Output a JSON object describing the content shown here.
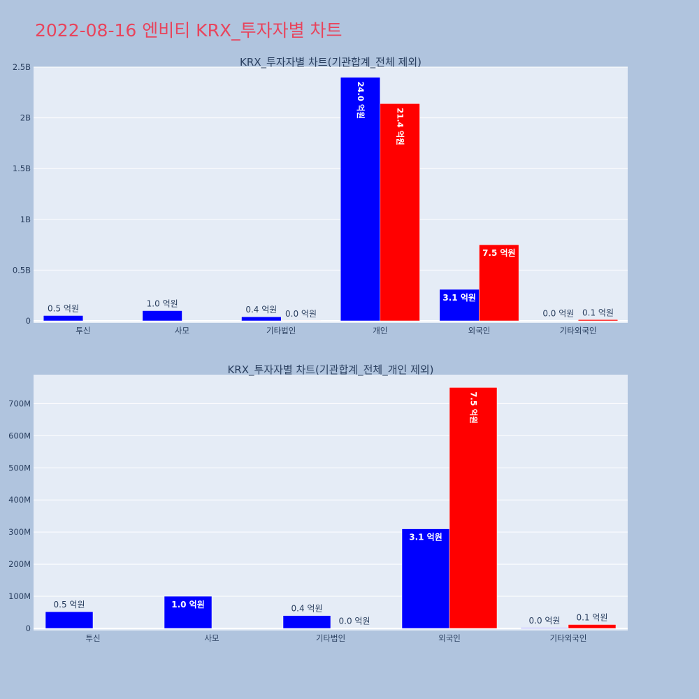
{
  "title": "2022-08-16 엔비티 KRX_투자자별 차트",
  "colors": {
    "series1": "#0000ff",
    "series2": "#ff0000",
    "plot_bg": "#e5ecf6",
    "page_bg": "#b0c4de",
    "title": "#e8445c"
  },
  "chart_data": [
    {
      "type": "bar",
      "title": "KRX_투자자별 차트(기관합계_전체 제외)",
      "categories": [
        "투신",
        "사모",
        "기타법인",
        "개인",
        "외국인",
        "기타외국인"
      ],
      "ylim": [
        0,
        2500000000
      ],
      "yticks": [
        0,
        500000000,
        1000000000,
        1500000000,
        2000000000,
        2500000000
      ],
      "ytick_labels": [
        "0",
        "0.5B",
        "1B",
        "1.5B",
        "2B",
        "2.5B"
      ],
      "grid": true,
      "series": [
        {
          "values": [
            52000000,
            100000000,
            40000000,
            2400000000,
            310000000,
            2000000
          ],
          "labels": [
            "0.5 억원",
            "1.0 억원",
            "0.4 억원",
            "24.0 억원",
            "3.1 억원",
            "0.0 억원"
          ]
        },
        {
          "values": [
            0,
            0,
            1000000,
            2140000000,
            750000000,
            12000000
          ],
          "labels": [
            "",
            "",
            "0.0 억원",
            "21.4 억원",
            "7.5 억원",
            "0.1 억원"
          ]
        }
      ]
    },
    {
      "type": "bar",
      "title": "KRX_투자자별 차트(기관합계_전체_개인 제외)",
      "categories": [
        "투신",
        "사모",
        "기타법인",
        "외국인",
        "기타외국인"
      ],
      "ylim": [
        0,
        790000000
      ],
      "yticks": [
        0,
        100000000,
        200000000,
        300000000,
        400000000,
        500000000,
        600000000,
        700000000
      ],
      "ytick_labels": [
        "0",
        "100M",
        "200M",
        "300M",
        "400M",
        "500M",
        "600M",
        "700M"
      ],
      "grid": true,
      "series": [
        {
          "values": [
            52000000,
            100000000,
            40000000,
            310000000,
            2000000
          ],
          "labels": [
            "0.5 억원",
            "1.0 억원",
            "0.4 억원",
            "3.1 억원",
            "0.0 억원"
          ]
        },
        {
          "values": [
            0,
            0,
            1000000,
            750000000,
            12000000
          ],
          "labels": [
            "",
            "",
            "0.0 억원",
            "7.5 억원",
            "0.1 억원"
          ]
        }
      ]
    }
  ]
}
